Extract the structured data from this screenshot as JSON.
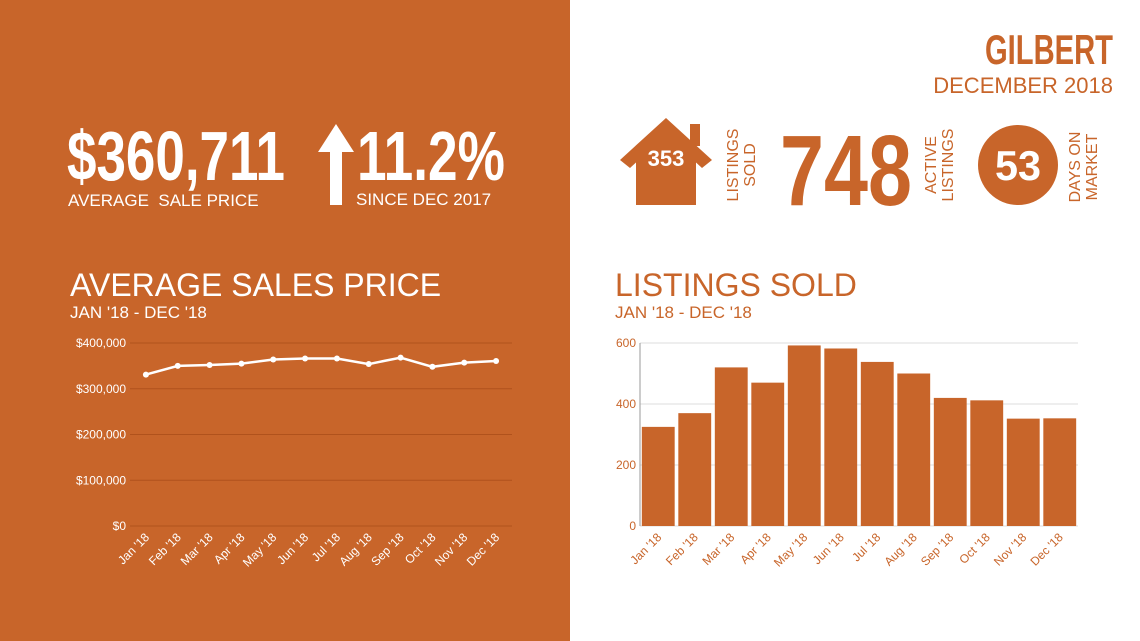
{
  "header": {
    "city": "GILBERT",
    "date": "DECEMBER 2018"
  },
  "stats": {
    "average_sale_price": {
      "value": "$360,711",
      "label": "AVERAGE  SALE PRICE"
    },
    "change": {
      "value": "11.2%",
      "label": "SINCE DEC 2017"
    },
    "listings_sold": {
      "value": "353",
      "label_lines": [
        "LISTINGS",
        "SOLD"
      ]
    },
    "active_listings": {
      "value": "748",
      "label_lines": [
        "ACTIVE",
        "LISTINGS"
      ]
    },
    "days_on_market": {
      "value": "53",
      "label_lines": [
        "DAYS ON",
        "MARKET"
      ]
    }
  },
  "chart_data": [
    {
      "type": "line",
      "title": "AVERAGE SALES PRICE",
      "subtitle": "JAN '18 - DEC '18",
      "categories": [
        "Jan '18",
        "Feb '18",
        "Mar '18",
        "Apr '18",
        "May '18",
        "Jun '18",
        "Jul '18",
        "Aug '18",
        "Sep '18",
        "Oct '18",
        "Nov '18",
        "Dec '18"
      ],
      "values": [
        331000,
        350000,
        352000,
        355000,
        364000,
        366000,
        366000,
        354000,
        368000,
        348000,
        357000,
        360711
      ],
      "color": "#ffffff",
      "ylim": [
        0,
        400000
      ],
      "yticks": [
        {
          "value": 0,
          "label": "$0"
        },
        {
          "value": 100000,
          "label": "$100,000"
        },
        {
          "value": 200000,
          "label": "$200,000"
        },
        {
          "value": 300000,
          "label": "$300,000"
        },
        {
          "value": 400000,
          "label": "$400,000"
        }
      ],
      "grid": true
    },
    {
      "type": "bar",
      "title": "LISTINGS SOLD",
      "subtitle": "JAN '18 - DEC '18",
      "categories": [
        "Jan '18",
        "Feb '18",
        "Mar '18",
        "Apr '18",
        "May '18",
        "Jun '18",
        "Jul '18",
        "Aug '18",
        "Sep '18",
        "Oct '18",
        "Nov '18",
        "Dec '18"
      ],
      "values": [
        325,
        370,
        520,
        470,
        592,
        582,
        538,
        500,
        420,
        412,
        352,
        353
      ],
      "color": "#c8652a",
      "ylim": [
        0,
        600
      ],
      "yticks": [
        0,
        200,
        400,
        600
      ],
      "grid": true
    }
  ]
}
